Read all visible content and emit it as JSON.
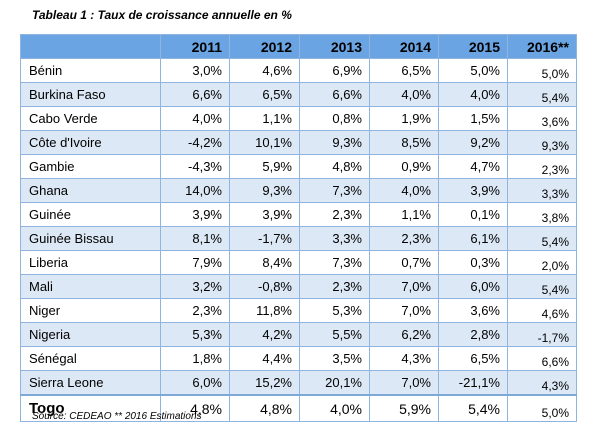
{
  "caption": "Tableau 1 : Taux de croissance annuelle en %",
  "columns": [
    "2011",
    "2012",
    "2013",
    "2014",
    "2015",
    "2016**"
  ],
  "rows": [
    {
      "country": "Bénin",
      "values": [
        "3,0%",
        "4,6%",
        "6,9%",
        "6,5%",
        "5,0%",
        "5,0%"
      ]
    },
    {
      "country": "Burkina Faso",
      "values": [
        "6,6%",
        "6,5%",
        "6,6%",
        "4,0%",
        "4,0%",
        "5,4%"
      ]
    },
    {
      "country": "Cabo Verde",
      "values": [
        "4,0%",
        "1,1%",
        "0,8%",
        "1,9%",
        "1,5%",
        "3,6%"
      ]
    },
    {
      "country": "Côte d'Ivoire",
      "values": [
        "-4,2%",
        "10,1%",
        "9,3%",
        "8,5%",
        "9,2%",
        "9,3%"
      ]
    },
    {
      "country": "Gambie",
      "values": [
        "-4,3%",
        "5,9%",
        "4,8%",
        "0,9%",
        "4,7%",
        "2,3%"
      ]
    },
    {
      "country": "Ghana",
      "values": [
        "14,0%",
        "9,3%",
        "7,3%",
        "4,0%",
        "3,9%",
        "3,3%"
      ]
    },
    {
      "country": "Guinée",
      "values": [
        "3,9%",
        "3,9%",
        "2,3%",
        "1,1%",
        "0,1%",
        "3,8%"
      ]
    },
    {
      "country": "Guinée Bissau",
      "values": [
        "8,1%",
        "-1,7%",
        "3,3%",
        "2,3%",
        "6,1%",
        "5,4%"
      ]
    },
    {
      "country": "Liberia",
      "values": [
        "7,9%",
        "8,4%",
        "7,3%",
        "0,7%",
        "0,3%",
        "2,0%"
      ]
    },
    {
      "country": "Mali",
      "values": [
        "3,2%",
        "-0,8%",
        "2,3%",
        "7,0%",
        "6,0%",
        "5,4%"
      ]
    },
    {
      "country": "Niger",
      "values": [
        "2,3%",
        "11,8%",
        "5,3%",
        "7,0%",
        "3,6%",
        "4,6%"
      ]
    },
    {
      "country": "Nigeria",
      "values": [
        "5,3%",
        "4,2%",
        "5,5%",
        "6,2%",
        "2,8%",
        "-1,7%"
      ]
    },
    {
      "country": "Sénégal",
      "values": [
        "1,8%",
        "4,4%",
        "3,5%",
        "4,3%",
        "6,5%",
        "6,6%"
      ]
    },
    {
      "country": "Sierra Leone",
      "values": [
        "6,0%",
        "15,2%",
        "20,1%",
        "7,0%",
        "-21,1%",
        "4,3%"
      ]
    },
    {
      "country": "Togo",
      "values": [
        "4,8%",
        "4,8%",
        "4,0%",
        "5,9%",
        "5,4%",
        "5,0%"
      ]
    }
  ],
  "source": "Source: CEDEAO  ** 2016 Estimations",
  "colors": {
    "header_fill": "#6aa4e2",
    "band_fill": "#dce8f5",
    "grid_line": "#8fb4de"
  }
}
